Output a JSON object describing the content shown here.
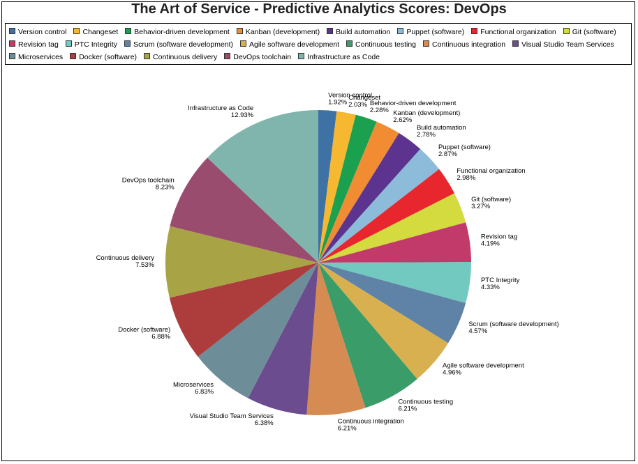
{
  "chart_data": {
    "type": "pie",
    "title": "The Art of Service - Predictive Analytics Scores: DevOps",
    "legend_position": "top",
    "slices": [
      {
        "label": "Version control",
        "value": 1.92,
        "value_label": "1.92%",
        "color": "#3e72a5"
      },
      {
        "label": "Changeset",
        "value": 2.03,
        "value_label": "2.03%",
        "color": "#f6b830"
      },
      {
        "label": "Behavior-driven development",
        "value": 2.28,
        "value_label": "2.28%",
        "color": "#1aa04e"
      },
      {
        "label": "Kanban (development)",
        "value": 2.62,
        "value_label": "2.62%",
        "color": "#f28c33"
      },
      {
        "label": "Build automation",
        "value": 2.78,
        "value_label": "2.78%",
        "color": "#5c338f"
      },
      {
        "label": "Puppet (software)",
        "value": 2.87,
        "value_label": "2.87%",
        "color": "#8cbcd9"
      },
      {
        "label": "Functional organization",
        "value": 2.98,
        "value_label": "2.98%",
        "color": "#e7272d"
      },
      {
        "label": "Git (software)",
        "value": 3.27,
        "value_label": "3.27%",
        "color": "#d3db3f"
      },
      {
        "label": "Revision tag",
        "value": 4.19,
        "value_label": "4.19%",
        "color": "#c23a6a"
      },
      {
        "label": "PTC Integrity",
        "value": 4.33,
        "value_label": "4.33%",
        "color": "#71c9c0"
      },
      {
        "label": "Scrum (software development)",
        "value": 4.57,
        "value_label": "4.57%",
        "color": "#5f83a6"
      },
      {
        "label": "Agile software development",
        "value": 4.96,
        "value_label": "4.96%",
        "color": "#d8b04f"
      },
      {
        "label": "Continuous testing",
        "value": 6.21,
        "value_label": "6.21%",
        "color": "#3a9c68"
      },
      {
        "label": "Continuous integration",
        "value": 6.21,
        "value_label": "6.21%",
        "color": "#d68b52"
      },
      {
        "label": "Visual Studio Team Services",
        "value": 6.38,
        "value_label": "6.38%",
        "color": "#6a4c8f"
      },
      {
        "label": "Microservices",
        "value": 6.83,
        "value_label": "6.83%",
        "color": "#6d8d98"
      },
      {
        "label": "Docker (software)",
        "value": 6.88,
        "value_label": "6.88%",
        "color": "#ad3c3c"
      },
      {
        "label": "Continuous delivery",
        "value": 7.53,
        "value_label": "7.53%",
        "color": "#a8a446"
      },
      {
        "label": "DevOps toolchain",
        "value": 8.23,
        "value_label": "8.23%",
        "color": "#9a4c6e"
      },
      {
        "label": "Infrastructure as Code",
        "value": 12.93,
        "value_label": "12.93%",
        "color": "#7fb5ad"
      }
    ]
  }
}
